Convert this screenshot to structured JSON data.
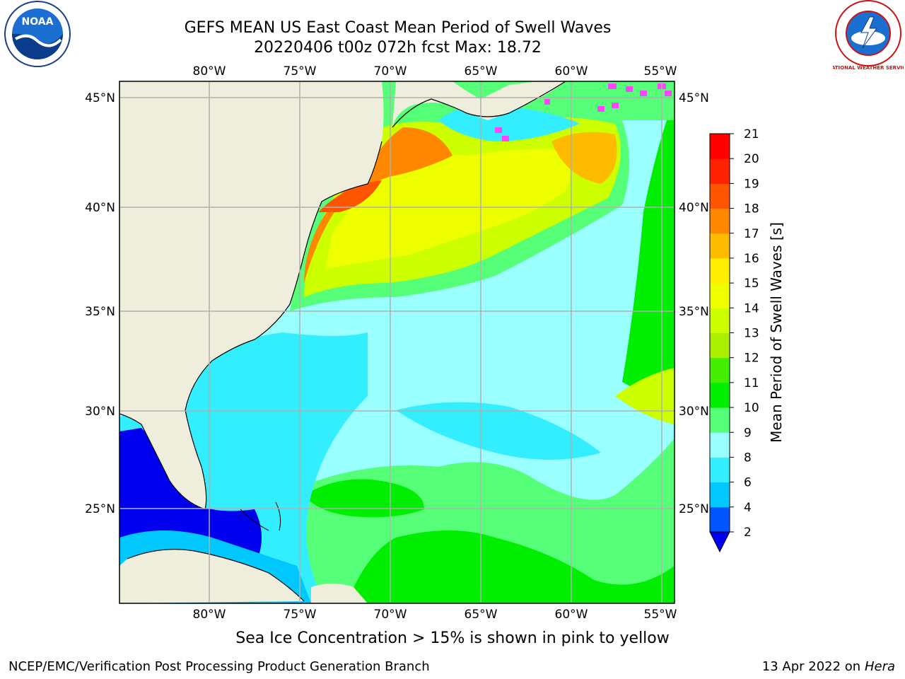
{
  "title_line1": "GEFS MEAN US East Coast Mean Period of Swell Waves",
  "title_line2": "20220406 t00z 072h fcst   Max: 18.72",
  "lon_labels": [
    "80°W",
    "75°W",
    "70°W",
    "65°W",
    "60°W",
    "55°W"
  ],
  "lat_labels": [
    "45°N",
    "40°N",
    "35°N",
    "30°N",
    "25°N"
  ],
  "colorbar": {
    "label": "Mean Period of Swell Waves [s]",
    "ticks": [
      "2",
      "4",
      "6",
      "8",
      "9",
      "10",
      "11",
      "12",
      "13",
      "14",
      "15",
      "16",
      "17",
      "18",
      "19",
      "20",
      "21"
    ],
    "colors": [
      "#0055ff",
      "#00c8ff",
      "#33eeff",
      "#99ffff",
      "#55ff77",
      "#00ee00",
      "#44ee00",
      "#aaee00",
      "#ccff00",
      "#eeff00",
      "#ffee00",
      "#ffbb00",
      "#ff8800",
      "#ff5500",
      "#ff2200",
      "#ff0000"
    ],
    "extend_color": "#0000ee"
  },
  "colors": {
    "land": "#efeedc",
    "grid": "#b0b0b0",
    "coast": "#000000"
  },
  "note": "Sea Ice Concentration > 15% is shown in pink to yellow",
  "footer_left": "NCEP/EMC/Verification Post Processing Product Generation Branch",
  "footer_right_text": "13 Apr 2022 on ",
  "footer_right_host": "Hera",
  "logos": {
    "noaa_text": "NOAA",
    "nws_text": "NATIONAL WEATHER SERVICE"
  }
}
